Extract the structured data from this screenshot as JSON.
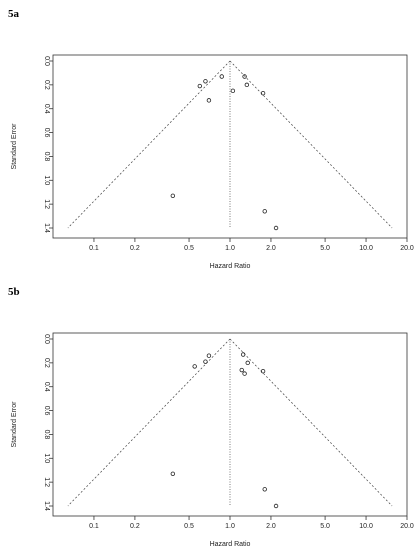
{
  "panels": [
    {
      "label": "5a"
    },
    {
      "label": "5b"
    }
  ],
  "chart_data": [
    {
      "type": "scatter",
      "title": "",
      "xlabel": "Hazard Ratio",
      "ylabel": "Standard Error",
      "x_scale": "log",
      "x_ticks": [
        "0.1",
        "0.2",
        "0.5",
        "1.0",
        "2.0",
        "5.0",
        "10.0",
        "20.0"
      ],
      "y_ticks": [
        "0.0",
        "0.2",
        "0.4",
        "0.6",
        "0.8",
        "1.0",
        "1.2",
        "1.4"
      ],
      "y_reversed": true,
      "xlim": [
        0.05,
        20
      ],
      "ylim": [
        0,
        1.45
      ],
      "reference_line_hr": 1.0,
      "funnel_se_max": 1.4,
      "points": [
        {
          "hr": 0.38,
          "se": 1.13
        },
        {
          "hr": 0.6,
          "se": 0.21
        },
        {
          "hr": 0.66,
          "se": 0.17
        },
        {
          "hr": 0.7,
          "se": 0.33
        },
        {
          "hr": 0.87,
          "se": 0.13
        },
        {
          "hr": 1.05,
          "se": 0.25
        },
        {
          "hr": 1.28,
          "se": 0.13
        },
        {
          "hr": 1.33,
          "se": 0.2
        },
        {
          "hr": 1.75,
          "se": 0.27
        },
        {
          "hr": 1.8,
          "se": 1.26
        },
        {
          "hr": 2.18,
          "se": 1.4
        }
      ]
    },
    {
      "type": "scatter",
      "title": "",
      "xlabel": "Hazard Ratio",
      "ylabel": "Standard Error",
      "x_scale": "log",
      "x_ticks": [
        "0.1",
        "0.2",
        "0.5",
        "1.0",
        "2.0",
        "5.0",
        "10.0",
        "20.0"
      ],
      "y_ticks": [
        "0.0",
        "0.2",
        "0.4",
        "0.6",
        "0.8",
        "1.0",
        "1.2",
        "1.4"
      ],
      "y_reversed": true,
      "xlim": [
        0.05,
        20
      ],
      "ylim": [
        0,
        1.45
      ],
      "reference_line_hr": 1.0,
      "funnel_se_max": 1.4,
      "points": [
        {
          "hr": 0.38,
          "se": 1.13
        },
        {
          "hr": 0.55,
          "se": 0.23
        },
        {
          "hr": 0.66,
          "se": 0.19
        },
        {
          "hr": 0.7,
          "se": 0.14
        },
        {
          "hr": 1.25,
          "se": 0.13
        },
        {
          "hr": 1.22,
          "se": 0.26
        },
        {
          "hr": 1.28,
          "se": 0.29
        },
        {
          "hr": 1.35,
          "se": 0.2
        },
        {
          "hr": 1.75,
          "se": 0.27
        },
        {
          "hr": 1.8,
          "se": 1.26
        },
        {
          "hr": 2.18,
          "se": 1.4
        }
      ]
    }
  ]
}
